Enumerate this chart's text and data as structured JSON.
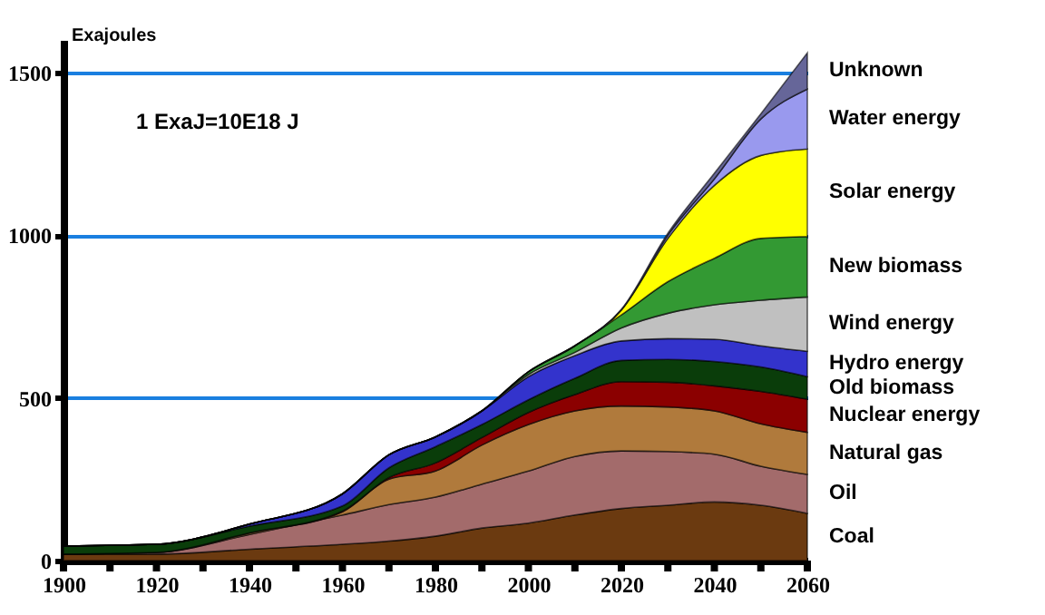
{
  "chart_data": {
    "type": "area",
    "stacked": true,
    "ylabel": "Exajoules",
    "annotations": [
      "1 ExaJ=10E18 J"
    ],
    "x": [
      1900,
      1920,
      1940,
      1960,
      1970,
      1980,
      1990,
      2000,
      2010,
      2020,
      2030,
      2040,
      2050,
      2060
    ],
    "xlim": [
      1900,
      2060
    ],
    "ylim": [
      0,
      1600
    ],
    "xticks": [
      1900,
      {
        "value": 1910,
        "label": null
      },
      1920,
      {
        "value": 1930,
        "label": null
      },
      1940,
      {
        "value": 1950,
        "label": null
      },
      1960,
      {
        "value": 1970,
        "label": null
      },
      1980,
      {
        "value": 1990,
        "label": null
      },
      2000,
      {
        "value": 2010,
        "label": null
      },
      2020,
      {
        "value": 2030,
        "label": null
      },
      2040,
      {
        "value": 2050,
        "label": null
      },
      2060
    ],
    "yticks": [
      0,
      500,
      1000,
      1500
    ],
    "grid": "y",
    "legend": false,
    "series": [
      {
        "name": "Coal",
        "color": "#6b3a10",
        "values": [
          20,
          20,
          35,
          50,
          60,
          75,
          100,
          115,
          140,
          160,
          170,
          180,
          170,
          145
        ]
      },
      {
        "name": "Oil",
        "color": "#a36b6b",
        "values": [
          0,
          5,
          45,
          90,
          112,
          120,
          135,
          160,
          180,
          177,
          165,
          147,
          120,
          120
        ]
      },
      {
        "name": "Natural gas",
        "color": "#b07a3c",
        "values": [
          0,
          0,
          5,
          10,
          78,
          80,
          120,
          143,
          140,
          138,
          137,
          133,
          130,
          129
        ]
      },
      {
        "name": "Nuclear energy",
        "color": "#8b0000",
        "values": [
          0,
          0,
          0,
          2,
          5,
          25,
          23,
          37,
          50,
          75,
          76,
          77,
          100,
          102
        ]
      },
      {
        "name": "Old biomass",
        "color": "#0a3d0a",
        "values": [
          25,
          25,
          21,
          16,
          30,
          50,
          40,
          39,
          50,
          65,
          70,
          75,
          75,
          69
        ]
      },
      {
        "name": "Hydro energy",
        "color": "#3333cc",
        "values": [
          0,
          0,
          6,
          37,
          40,
          30,
          42,
          71,
          70,
          60,
          64,
          68,
          65,
          78
        ]
      },
      {
        "name": "Wind energy",
        "color": "#c0c0c0",
        "values": [
          0,
          0,
          0,
          0,
          0,
          0,
          0,
          7,
          10,
          40,
          78,
          106,
          140,
          167
        ]
      },
      {
        "name": "New biomass",
        "color": "#339933",
        "values": [
          0,
          0,
          0,
          0,
          0,
          0,
          0,
          8,
          20,
          40,
          97,
          143,
          190,
          186
        ]
      },
      {
        "name": "Solar energy",
        "color": "#ffff00",
        "values": [
          0,
          0,
          0,
          0,
          0,
          0,
          0,
          0,
          0,
          15,
          133,
          224,
          255,
          269
        ]
      },
      {
        "name": "Water energy",
        "color": "#9999ee",
        "values": [
          0,
          0,
          0,
          0,
          0,
          0,
          0,
          0,
          0,
          0,
          10,
          20,
          112,
          184
        ]
      },
      {
        "name": "Unknown",
        "color": "#666699",
        "values": [
          0,
          0,
          0,
          0,
          0,
          0,
          0,
          0,
          0,
          2,
          6,
          17,
          16,
          111
        ]
      }
    ]
  }
}
